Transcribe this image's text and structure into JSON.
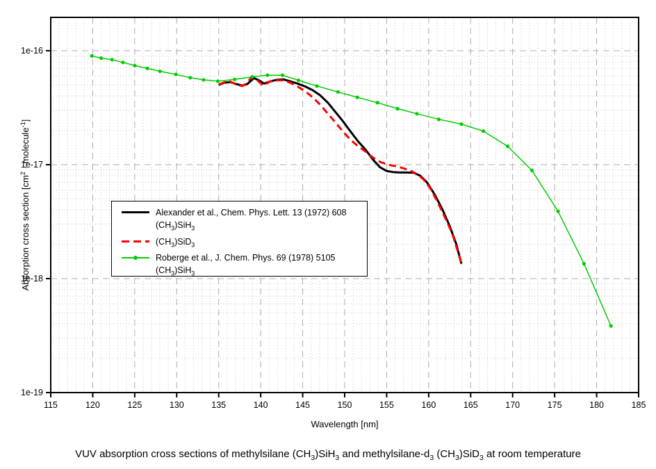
{
  "page": {
    "caption": "VUV absorption cross sections of methylsilane (CH_{3})SiH_{3} and methylsilane-d_{3} (CH_{3})SiD_{3} at room temperature"
  },
  "chart_data": {
    "type": "line",
    "title": "",
    "xlabel": "Wavelength [nm]",
    "ylabel": "Absorption cross section [cm^{2} · molecule^{-1}]",
    "x_axis": {
      "min": 115,
      "max": 185,
      "major_step": 5,
      "minor_step": 1,
      "tick_labels": [
        "115",
        "120",
        "125",
        "130",
        "135",
        "140",
        "145",
        "150",
        "155",
        "160",
        "165",
        "170",
        "175",
        "180",
        "185"
      ]
    },
    "y_axis": {
      "scale": "log",
      "min": 1e-19,
      "max": 1.93e-16,
      "tick_labels": [
        "1e-16",
        "1e-17",
        "1e-18",
        "1e-19"
      ],
      "tick_values": [
        1e-16,
        1e-17,
        1e-18,
        1e-19
      ],
      "minor_mantissas": [
        2,
        3,
        4,
        5,
        6,
        7,
        8,
        9
      ]
    },
    "grid": {
      "major_color": "#adadad",
      "minor_color": "#c6c6c6",
      "major_dash": "9 6",
      "minor_dash": "1 3"
    },
    "legend": {
      "position": "inside-left",
      "entries": [
        {
          "swatch": "solid",
          "color": "#000000",
          "lines": [
            "Alexander et al., Chem. Phys. Lett. 13 (1972) 608",
            "(CH_{3})SiH_{3}"
          ]
        },
        {
          "swatch": "dashed",
          "color": "#ff0000",
          "lines": [
            "(CH_{3})SiD_{3}"
          ]
        },
        {
          "swatch": "line-marker",
          "color": "#00cc00",
          "lines": [
            "Roberge et al., J. Chem. Phys. 69 (1978) 5105",
            "(CH_{3})SiH_{3}"
          ]
        }
      ]
    },
    "series": [
      {
        "name": "alexander-sih3",
        "label": "Alexander et al., Chem. Phys. Lett. 13 (1972) 608 (CH3)SiH3",
        "color": "#000000",
        "style": "solid",
        "width": 3,
        "markers": false,
        "points": [
          [
            135.0,
            5e-17
          ],
          [
            135.7,
            5.25e-17
          ],
          [
            136.4,
            5.3e-17
          ],
          [
            137.1,
            5.1e-17
          ],
          [
            137.8,
            4.95e-17
          ],
          [
            138.4,
            5.1e-17
          ],
          [
            139.2,
            5.75e-17
          ],
          [
            139.8,
            5.5e-17
          ],
          [
            140.4,
            5.15e-17
          ],
          [
            141.2,
            5.4e-17
          ],
          [
            141.9,
            5.55e-17
          ],
          [
            142.7,
            5.6e-17
          ],
          [
            143.5,
            5.4e-17
          ],
          [
            144.4,
            5.15e-17
          ],
          [
            145.3,
            4.85e-17
          ],
          [
            146.2,
            4.5e-17
          ],
          [
            147.1,
            4.05e-17
          ],
          [
            148.0,
            3.5e-17
          ],
          [
            148.9,
            2.9e-17
          ],
          [
            149.8,
            2.4e-17
          ],
          [
            150.7,
            1.95e-17
          ],
          [
            151.6,
            1.6e-17
          ],
          [
            152.5,
            1.35e-17
          ],
          [
            153.4,
            1.1e-17
          ],
          [
            154.2,
            9.5e-18
          ],
          [
            155.0,
            8.8e-18
          ],
          [
            155.8,
            8.6e-18
          ],
          [
            156.6,
            8.55e-18
          ],
          [
            157.4,
            8.55e-18
          ],
          [
            158.2,
            8.5e-18
          ],
          [
            159.0,
            8e-18
          ],
          [
            159.8,
            7e-18
          ],
          [
            160.7,
            5.5e-18
          ],
          [
            161.6,
            4.1e-18
          ],
          [
            162.5,
            2.9e-18
          ],
          [
            163.3,
            2e-18
          ],
          [
            163.9,
            1.35e-18
          ]
        ]
      },
      {
        "name": "sid3",
        "label": "(CH3)SiD3",
        "color": "#ff0000",
        "style": "dashed",
        "width": 3,
        "markers": false,
        "points": [
          [
            135.0,
            5.05e-17
          ],
          [
            135.7,
            5.3e-17
          ],
          [
            136.4,
            5.35e-17
          ],
          [
            137.1,
            5.05e-17
          ],
          [
            137.8,
            4.9e-17
          ],
          [
            138.3,
            5.15e-17
          ],
          [
            138.9,
            5.85e-17
          ],
          [
            139.6,
            5.5e-17
          ],
          [
            140.3,
            4.95e-17
          ],
          [
            141.1,
            5.35e-17
          ],
          [
            141.9,
            5.5e-17
          ],
          [
            142.7,
            5.5e-17
          ],
          [
            143.5,
            5.25e-17
          ],
          [
            144.4,
            4.85e-17
          ],
          [
            145.3,
            4.4e-17
          ],
          [
            146.2,
            3.9e-17
          ],
          [
            147.1,
            3.35e-17
          ],
          [
            148.0,
            2.8e-17
          ],
          [
            148.9,
            2.35e-17
          ],
          [
            149.8,
            1.95e-17
          ],
          [
            150.7,
            1.65e-17
          ],
          [
            151.6,
            1.45e-17
          ],
          [
            152.5,
            1.3e-17
          ],
          [
            153.4,
            1.15e-17
          ],
          [
            154.3,
            1.05e-17
          ],
          [
            155.2,
            1e-17
          ],
          [
            156.1,
            9.7e-18
          ],
          [
            157.0,
            9.3e-18
          ],
          [
            157.9,
            8.8e-18
          ],
          [
            158.7,
            8.2e-18
          ],
          [
            159.4,
            7.4e-18
          ],
          [
            160.2,
            6.2e-18
          ],
          [
            161.0,
            4.8e-18
          ],
          [
            161.9,
            3.5e-18
          ],
          [
            162.8,
            2.5e-18
          ],
          [
            163.5,
            1.7e-18
          ],
          [
            163.9,
            1.35e-18
          ]
        ]
      },
      {
        "name": "roberge-sih3",
        "label": "Roberge et al., J. Chem. Phys. 69 (1978) 5105 (CH3)SiH3",
        "color": "#00cc00",
        "style": "solid",
        "width": 1.5,
        "markers": true,
        "points": [
          [
            119.9,
            9e-17
          ],
          [
            121.0,
            8.6e-17
          ],
          [
            122.3,
            8.35e-17
          ],
          [
            123.6,
            7.9e-17
          ],
          [
            125.0,
            7.4e-17
          ],
          [
            126.5,
            7e-17
          ],
          [
            128.0,
            6.6e-17
          ],
          [
            129.9,
            6.2e-17
          ],
          [
            131.6,
            5.8e-17
          ],
          [
            133.2,
            5.55e-17
          ],
          [
            134.9,
            5.4e-17
          ],
          [
            136.9,
            5.6e-17
          ],
          [
            139.0,
            5.9e-17
          ],
          [
            140.8,
            6.1e-17
          ],
          [
            142.6,
            6.1e-17
          ],
          [
            144.5,
            5.5e-17
          ],
          [
            146.7,
            4.9e-17
          ],
          [
            149.2,
            4.35e-17
          ],
          [
            151.5,
            3.9e-17
          ],
          [
            153.9,
            3.5e-17
          ],
          [
            156.3,
            3.1e-17
          ],
          [
            158.6,
            2.8e-17
          ],
          [
            161.2,
            2.5e-17
          ],
          [
            163.9,
            2.27e-17
          ],
          [
            166.5,
            1.97e-17
          ],
          [
            169.4,
            1.45e-17
          ],
          [
            172.3,
            8.9e-18
          ],
          [
            175.4,
            3.9e-18
          ],
          [
            178.5,
            1.35e-18
          ],
          [
            181.7,
            3.85e-19
          ]
        ]
      }
    ]
  }
}
